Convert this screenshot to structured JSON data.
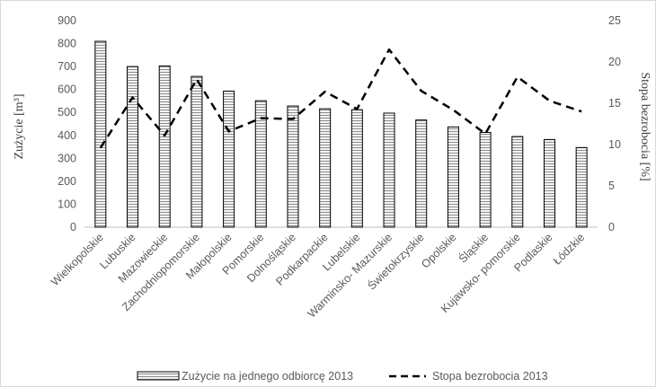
{
  "chart_data": {
    "type": "bar",
    "categories": [
      "Wielkopolskie",
      "Lubuskie",
      "Mazowieckie",
      "Zachodniopomorskie",
      "Małopolskie",
      "Pomorskie",
      "Dolnośląskie",
      "Podkarpackie",
      "Lubelskie",
      "Warminsko- Mazurskie",
      "Świetokrzyskie",
      "Opolskie",
      "Śląskie",
      "Kujawsko- pomorskie",
      "Podlaskie",
      "Łódzkie"
    ],
    "series": [
      {
        "name": "Zużycie na jednego odbiorcę 2013",
        "kind": "bar",
        "axis": "left",
        "values": [
          810,
          700,
          703,
          657,
          593,
          551,
          528,
          516,
          512,
          497,
          467,
          437,
          413,
          395,
          382,
          347
        ]
      },
      {
        "name": "Stopa bezrobocia 2013",
        "kind": "line",
        "style": "dashed",
        "axis": "right",
        "values": [
          9.6,
          15.7,
          11.1,
          17.9,
          11.6,
          13.2,
          13.1,
          16.4,
          14.3,
          21.5,
          16.5,
          14.2,
          11.3,
          18.2,
          15.3,
          14.0
        ]
      }
    ],
    "ylabel": "Zużycie [m³]",
    "y2label": "Stopa bezrobocia [%]",
    "ylim": [
      0,
      900
    ],
    "y2lim": [
      0,
      25
    ],
    "yticks": [
      0,
      100,
      200,
      300,
      400,
      500,
      600,
      700,
      800,
      900
    ],
    "y2ticks": [
      0,
      5,
      10,
      15,
      20,
      25
    ],
    "grid": false,
    "legend": "bottom",
    "colors": {
      "bar_stroke": "#000000",
      "bar_hatch": "#8c8c8c",
      "line": "#000000",
      "axis": "#bfbfbf",
      "text": "#595959"
    }
  }
}
